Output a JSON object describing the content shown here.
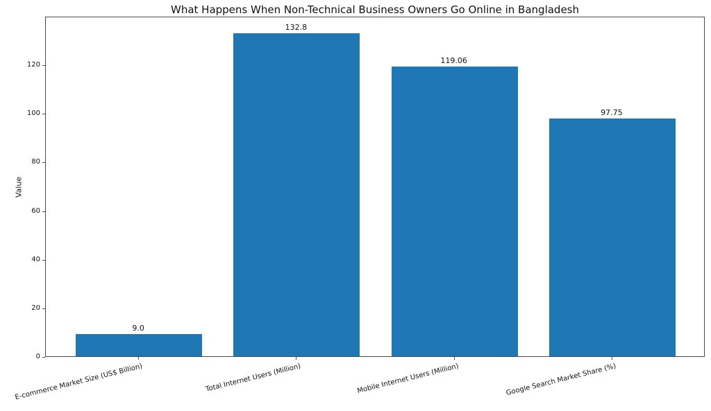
{
  "chart_data": {
    "type": "bar",
    "title": "What Happens When Non-Technical Business Owners Go Online in Bangladesh",
    "xlabel": "",
    "ylabel": "Value",
    "categories": [
      "E-commerce Market Size (US$ Billion)",
      "Total Internet Users (Million)",
      "Mobile Internet Users (Million)",
      "Google Search Market Share (%)"
    ],
    "values": [
      9.0,
      132.8,
      119.06,
      97.75
    ],
    "value_labels": [
      "9.0",
      "132.8",
      "119.06",
      "97.75"
    ],
    "ylim": [
      0,
      140
    ],
    "yticks": [
      0,
      20,
      40,
      60,
      80,
      100,
      120
    ],
    "bar_color": "#1f77b4",
    "grid": false,
    "legend": null,
    "x_tick_rotation_deg": 14
  }
}
